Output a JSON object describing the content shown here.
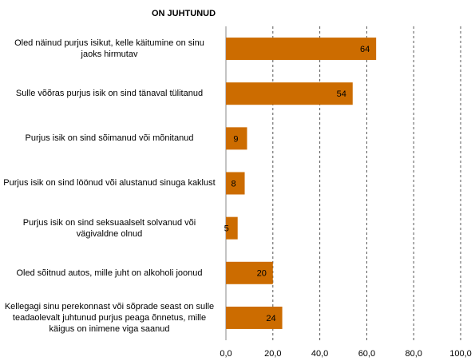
{
  "chart_data": {
    "type": "barh",
    "title": "ON JUHTUNUD",
    "categories": [
      "Oled näinud purjus isikut, kelle käitumine on sinu jaoks hirmutav",
      "Sulle võõras purjus isik on sind tänaval tülitanud",
      "Purjus isik on sind sõimanud või mõnitanud",
      "Purjus isik on sind löönud või alustanud sinuga kaklust",
      "Purjus isik on sind seksuaalselt solvanud või vägivaldne olnud",
      "Oled sõitnud autos, mille juht on alkoholi joonud",
      "Kellegagi sinu perekonnast või sõprade seast on sulle teadaolevalt juhtunud purjus peaga õnnetus, mille käigus on inimene viga saanud"
    ],
    "values": [
      64,
      54,
      9,
      8,
      5,
      20,
      24
    ],
    "color": "#cc6c00",
    "xlim": [
      0,
      100
    ],
    "xticks": [
      {
        "value": 0,
        "label": "0,0"
      },
      {
        "value": 20,
        "label": "20,0"
      },
      {
        "value": 40,
        "label": "40,0"
      },
      {
        "value": 60,
        "label": "60,0"
      },
      {
        "value": 80,
        "label": "80,0"
      },
      {
        "value": 100,
        "label": "100,0"
      }
    ],
    "grid": true
  }
}
